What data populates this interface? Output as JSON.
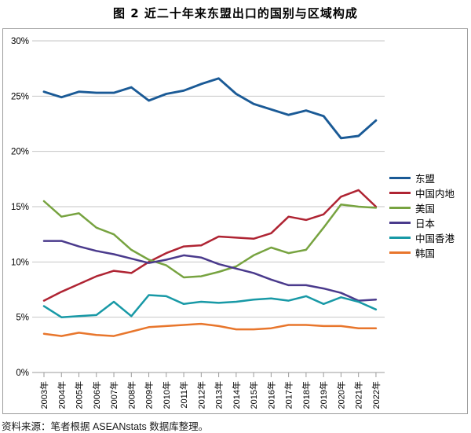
{
  "figure": {
    "title": "图 2  近二十年来东盟出口的国别与区域构成",
    "source_note": "资料来源：笔者根据 ASEANstats 数据库整理。"
  },
  "colors": {
    "gridline": "#c6c6c6",
    "axis": "#9b9b9b",
    "frame": "#9b9b9b",
    "text": "#000000"
  },
  "chart_data": {
    "type": "line",
    "title": "图 2  近二十年来东盟出口的国别与区域构成",
    "xlabel": "",
    "ylabel": "",
    "ylim": [
      0,
      30
    ],
    "ytick_step": 5,
    "ytick_labels": [
      "0%",
      "5%",
      "10%",
      "15%",
      "20%",
      "25%",
      "30%"
    ],
    "grid": true,
    "legend_position": "right",
    "x_labels": [
      "2003年",
      "2004年",
      "2005年",
      "2006年",
      "2007年",
      "2008年",
      "2009年",
      "2010年",
      "2011年",
      "2012年",
      "2013年",
      "2014年",
      "2015年",
      "2016年",
      "2017年",
      "2018年",
      "2019年",
      "2020年",
      "2021年",
      "2022年"
    ],
    "series": [
      {
        "id": "asean",
        "name": "东盟",
        "color": "#1a5a96",
        "values": [
          25.4,
          24.9,
          25.4,
          25.3,
          25.3,
          25.8,
          24.6,
          25.2,
          25.5,
          26.1,
          26.6,
          25.2,
          24.3,
          23.8,
          23.3,
          23.7,
          23.2,
          21.2,
          21.4,
          22.8
        ]
      },
      {
        "id": "china-mainland",
        "name": "中国内地",
        "color": "#af2433",
        "values": [
          6.5,
          7.3,
          8.0,
          8.7,
          9.2,
          9.0,
          10.0,
          10.8,
          11.4,
          11.5,
          12.3,
          12.2,
          12.1,
          12.6,
          14.1,
          13.8,
          14.3,
          15.9,
          16.5,
          15.0
        ]
      },
      {
        "id": "usa",
        "name": "美国",
        "color": "#77a340",
        "values": [
          15.5,
          14.1,
          14.4,
          13.1,
          12.5,
          11.1,
          10.2,
          9.7,
          8.6,
          8.7,
          9.1,
          9.6,
          10.6,
          11.3,
          10.8,
          11.1,
          13.1,
          15.2,
          15.0,
          14.9
        ]
      },
      {
        "id": "japan",
        "name": "日本",
        "color": "#4a3a8c",
        "values": [
          11.9,
          11.9,
          11.4,
          11.0,
          10.7,
          10.3,
          9.9,
          10.2,
          10.6,
          10.4,
          9.8,
          9.4,
          9.0,
          8.4,
          7.9,
          7.9,
          7.6,
          7.2,
          6.5,
          6.6
        ]
      },
      {
        "id": "hong-kong",
        "name": "中国香港",
        "color": "#1899a6",
        "values": [
          6.0,
          5.0,
          5.1,
          5.2,
          6.4,
          5.1,
          7.0,
          6.9,
          6.2,
          6.4,
          6.3,
          6.4,
          6.6,
          6.7,
          6.5,
          6.9,
          6.2,
          6.8,
          6.4,
          5.7
        ]
      },
      {
        "id": "korea",
        "name": "韩国",
        "color": "#e8762c",
        "values": [
          3.5,
          3.3,
          3.6,
          3.4,
          3.3,
          3.7,
          4.1,
          4.2,
          4.3,
          4.4,
          4.2,
          3.9,
          3.9,
          4.0,
          4.3,
          4.3,
          4.2,
          4.2,
          4.0,
          4.0
        ]
      }
    ]
  }
}
